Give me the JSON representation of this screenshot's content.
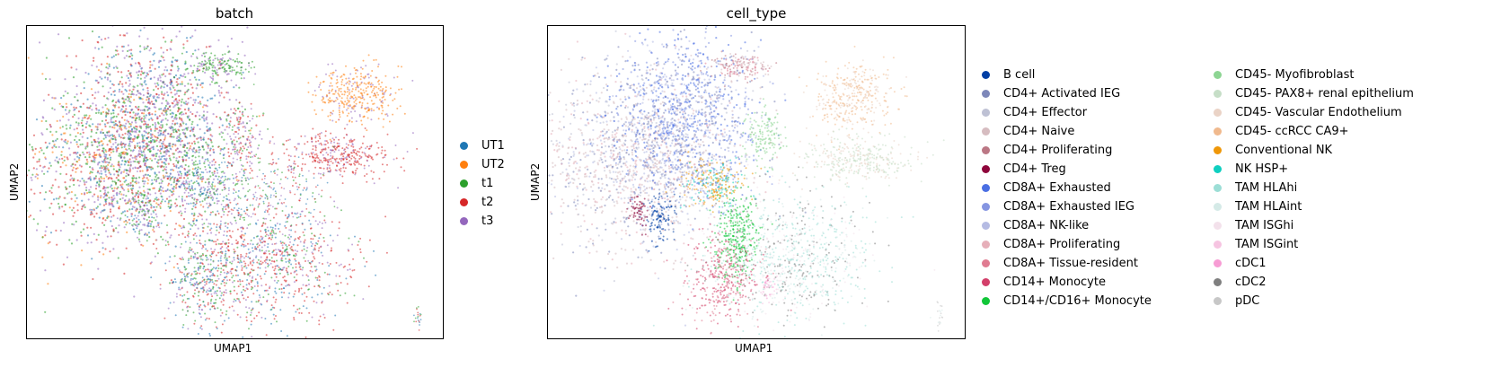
{
  "chart_data": [
    {
      "type": "scatter",
      "title": "batch",
      "xlabel": "UMAP1",
      "ylabel": "UMAP2",
      "grid": false,
      "legend_position": "right",
      "series": [
        {
          "name": "UT1",
          "color": "#1f77b4"
        },
        {
          "name": "UT2",
          "color": "#ff7f0e"
        },
        {
          "name": "t1",
          "color": "#2ca02c"
        },
        {
          "name": "t2",
          "color": "#d62728"
        },
        {
          "name": "t3",
          "color": "#9467bd"
        }
      ]
    },
    {
      "type": "scatter",
      "title": "cell_type",
      "xlabel": "UMAP1",
      "ylabel": "UMAP2",
      "grid": false,
      "legend_position": "right",
      "series": [
        {
          "name": "B cell",
          "color": "#023fa5"
        },
        {
          "name": "CD4+ Activated IEG",
          "color": "#7d87b9"
        },
        {
          "name": "CD4+ Effector",
          "color": "#bec1d4"
        },
        {
          "name": "CD4+ Naive",
          "color": "#d6bcc0"
        },
        {
          "name": "CD4+ Proliferating",
          "color": "#bb7784"
        },
        {
          "name": "CD4+ Treg",
          "color": "#8e063b"
        },
        {
          "name": "CD8A+ Exhausted",
          "color": "#4a6fe3"
        },
        {
          "name": "CD8A+ Exhausted IEG",
          "color": "#8595e1"
        },
        {
          "name": "CD8A+ NK-like",
          "color": "#b5bbe3"
        },
        {
          "name": "CD8A+ Proliferating",
          "color": "#e6afb9"
        },
        {
          "name": "CD8A+ Tissue-resident",
          "color": "#e07b91"
        },
        {
          "name": "CD14+ Monocyte",
          "color": "#d33f6a"
        },
        {
          "name": "CD14+/CD16+ Monocyte",
          "color": "#11c638"
        },
        {
          "name": "CD45- Myofibroblast",
          "color": "#8dd593"
        },
        {
          "name": "CD45- PAX8+ renal epithelium",
          "color": "#c6dec7"
        },
        {
          "name": "CD45- Vascular Endothelium",
          "color": "#ead3c6"
        },
        {
          "name": "CD45- ccRCC CA9+",
          "color": "#f0b98d"
        },
        {
          "name": "Conventional NK",
          "color": "#ef9708"
        },
        {
          "name": "NK HSP+",
          "color": "#0fcfc0"
        },
        {
          "name": "TAM HLAhi",
          "color": "#9cded6"
        },
        {
          "name": "TAM HLAint",
          "color": "#d5eae7"
        },
        {
          "name": "TAM ISGhi",
          "color": "#f3e1eb"
        },
        {
          "name": "TAM ISGint",
          "color": "#f6c4e1"
        },
        {
          "name": "cDC1",
          "color": "#f79cd4"
        },
        {
          "name": "cDC2",
          "color": "#7f7f7f"
        },
        {
          "name": "pDC",
          "color": "#c7c7c7"
        }
      ]
    }
  ]
}
